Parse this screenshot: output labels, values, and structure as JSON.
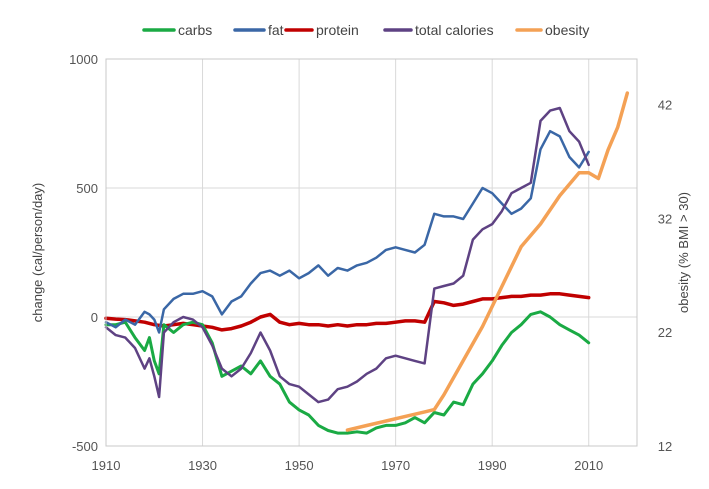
{
  "chart_data": {
    "type": "line",
    "title": "",
    "xlabel": "",
    "ylabel": "change  (cal/person/day)",
    "y2label": "obesity (% BMI > 30)",
    "xlim": [
      1910,
      2020
    ],
    "ylim": [
      -500,
      1000
    ],
    "y2lim": [
      12,
      46
    ],
    "x_ticks": [
      1910,
      1930,
      1950,
      1970,
      1990,
      2010
    ],
    "x_tick_labels": [
      "1910",
      "1930",
      "1950",
      "1970",
      "1990",
      "2010"
    ],
    "y_ticks": [
      -500,
      0,
      500,
      1000
    ],
    "y_tick_labels": [
      "-500",
      "0",
      "500",
      "1000"
    ],
    "y2_ticks": [
      12,
      22,
      32,
      42
    ],
    "y2_tick_labels": [
      "12",
      "22",
      "32",
      "42"
    ],
    "legend_position": "top",
    "series": [
      {
        "name": "carbs",
        "color": "#1aaa44",
        "axis": "left",
        "x": [
          1910,
          1912,
          1914,
          1916,
          1918,
          1919,
          1920,
          1921,
          1922,
          1924,
          1926,
          1928,
          1930,
          1932,
          1934,
          1936,
          1938,
          1940,
          1942,
          1944,
          1946,
          1948,
          1950,
          1952,
          1954,
          1956,
          1958,
          1960,
          1962,
          1964,
          1966,
          1968,
          1970,
          1972,
          1974,
          1976,
          1978,
          1980,
          1982,
          1984,
          1986,
          1988,
          1990,
          1992,
          1994,
          1996,
          1998,
          2000,
          2002,
          2004,
          2006,
          2008,
          2010
        ],
        "values": [
          -30,
          -30,
          -20,
          -80,
          -130,
          -80,
          -170,
          -220,
          -30,
          -60,
          -30,
          -20,
          -30,
          -100,
          -230,
          -210,
          -190,
          -220,
          -170,
          -230,
          -260,
          -330,
          -360,
          -380,
          -420,
          -440,
          -450,
          -450,
          -445,
          -450,
          -430,
          -420,
          -420,
          -410,
          -390,
          -410,
          -370,
          -380,
          -330,
          -340,
          -260,
          -220,
          -170,
          -110,
          -60,
          -30,
          10,
          20,
          0,
          -30,
          -50,
          -70,
          -100
        ]
      },
      {
        "name": "fat",
        "color": "#3a67a6",
        "axis": "left",
        "x": [
          1910,
          1912,
          1914,
          1916,
          1918,
          1919,
          1920,
          1921,
          1922,
          1924,
          1926,
          1928,
          1930,
          1932,
          1934,
          1936,
          1938,
          1940,
          1942,
          1944,
          1946,
          1948,
          1950,
          1952,
          1954,
          1956,
          1958,
          1960,
          1962,
          1964,
          1966,
          1968,
          1970,
          1972,
          1974,
          1976,
          1978,
          1980,
          1982,
          1984,
          1986,
          1988,
          1990,
          1992,
          1994,
          1996,
          1998,
          2000,
          2002,
          2004,
          2006,
          2008,
          2010
        ],
        "values": [
          -20,
          -40,
          -10,
          -30,
          20,
          10,
          -10,
          -60,
          30,
          70,
          90,
          90,
          100,
          80,
          10,
          60,
          80,
          130,
          170,
          180,
          160,
          180,
          150,
          170,
          200,
          160,
          190,
          180,
          200,
          210,
          230,
          260,
          270,
          260,
          250,
          280,
          400,
          390,
          390,
          380,
          440,
          500,
          480,
          440,
          400,
          420,
          460,
          650,
          720,
          700,
          620,
          580,
          640
        ]
      },
      {
        "name": "protein",
        "color": "#c00000",
        "axis": "left",
        "x": [
          1910,
          1912,
          1914,
          1916,
          1918,
          1920,
          1922,
          1924,
          1926,
          1928,
          1930,
          1932,
          1934,
          1936,
          1938,
          1940,
          1942,
          1944,
          1946,
          1948,
          1950,
          1952,
          1954,
          1956,
          1958,
          1960,
          1962,
          1964,
          1966,
          1968,
          1970,
          1972,
          1974,
          1976,
          1978,
          1980,
          1982,
          1984,
          1986,
          1988,
          1990,
          1992,
          1994,
          1996,
          1998,
          2000,
          2002,
          2004,
          2006,
          2008,
          2010
        ],
        "values": [
          -5,
          -8,
          -10,
          -15,
          -20,
          -30,
          -35,
          -30,
          -25,
          -30,
          -35,
          -40,
          -50,
          -45,
          -35,
          -20,
          0,
          10,
          -20,
          -30,
          -25,
          -30,
          -30,
          -35,
          -30,
          -35,
          -30,
          -30,
          -25,
          -25,
          -20,
          -15,
          -15,
          -20,
          60,
          55,
          45,
          50,
          60,
          70,
          70,
          75,
          80,
          80,
          85,
          85,
          90,
          90,
          85,
          80,
          75
        ]
      },
      {
        "name": "total calories",
        "color": "#5e4283",
        "axis": "left",
        "x": [
          1910,
          1912,
          1914,
          1916,
          1918,
          1919,
          1920,
          1921,
          1922,
          1924,
          1926,
          1928,
          1930,
          1932,
          1934,
          1936,
          1938,
          1940,
          1942,
          1944,
          1946,
          1948,
          1950,
          1952,
          1954,
          1956,
          1958,
          1960,
          1962,
          1964,
          1966,
          1968,
          1970,
          1972,
          1974,
          1976,
          1978,
          1980,
          1982,
          1984,
          1986,
          1988,
          1990,
          1992,
          1994,
          1996,
          1998,
          2000,
          2002,
          2004,
          2006,
          2008,
          2010
        ],
        "values": [
          -40,
          -70,
          -80,
          -120,
          -200,
          -160,
          -230,
          -310,
          -60,
          -20,
          0,
          -10,
          -40,
          -110,
          -200,
          -230,
          -200,
          -140,
          -60,
          -130,
          -230,
          -260,
          -270,
          -300,
          -330,
          -320,
          -280,
          -270,
          -250,
          -220,
          -200,
          -160,
          -150,
          -160,
          -170,
          -180,
          110,
          120,
          130,
          160,
          300,
          340,
          360,
          410,
          480,
          500,
          520,
          760,
          800,
          810,
          720,
          680,
          590
        ]
      },
      {
        "name": "obesity",
        "color": "#f4a155",
        "axis": "right",
        "x": [
          1960,
          1964,
          1968,
          1972,
          1976,
          1978,
          1980,
          1984,
          1988,
          1992,
          1996,
          2000,
          2004,
          2006,
          2008,
          2010,
          2012,
          2014,
          2016,
          2018
        ],
        "values": [
          13.4,
          13.8,
          14.2,
          14.6,
          15.0,
          15.2,
          16.5,
          19.5,
          22.5,
          26.0,
          29.5,
          31.5,
          34.0,
          35.0,
          36.0,
          36.0,
          35.5,
          38.0,
          40.0,
          43.0
        ]
      }
    ]
  }
}
